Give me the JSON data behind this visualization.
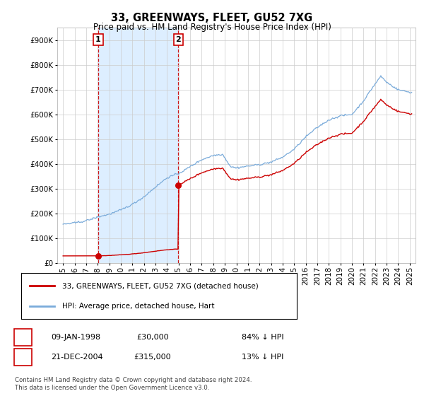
{
  "title": "33, GREENWAYS, FLEET, GU52 7XG",
  "subtitle": "Price paid vs. HM Land Registry's House Price Index (HPI)",
  "sale1_date": "09-JAN-1998",
  "sale1_price": 30000,
  "sale1_label": "84% ↓ HPI",
  "sale1_x": 1998.05,
  "sale2_date": "21-DEC-2004",
  "sale2_price": 315000,
  "sale2_label": "13% ↓ HPI",
  "sale2_x": 2004.97,
  "legend_property": "33, GREENWAYS, FLEET, GU52 7XG (detached house)",
  "legend_hpi": "HPI: Average price, detached house, Hart",
  "footer": "Contains HM Land Registry data © Crown copyright and database right 2024.\nThis data is licensed under the Open Government Licence v3.0.",
  "ylim": [
    0,
    950000
  ],
  "xlim_start": 1994.5,
  "xlim_end": 2025.5,
  "property_color": "#cc0000",
  "hpi_color": "#7aabda",
  "shade_color": "#ddeeff",
  "grid_color": "#cccccc",
  "bg_color": "#ffffff"
}
